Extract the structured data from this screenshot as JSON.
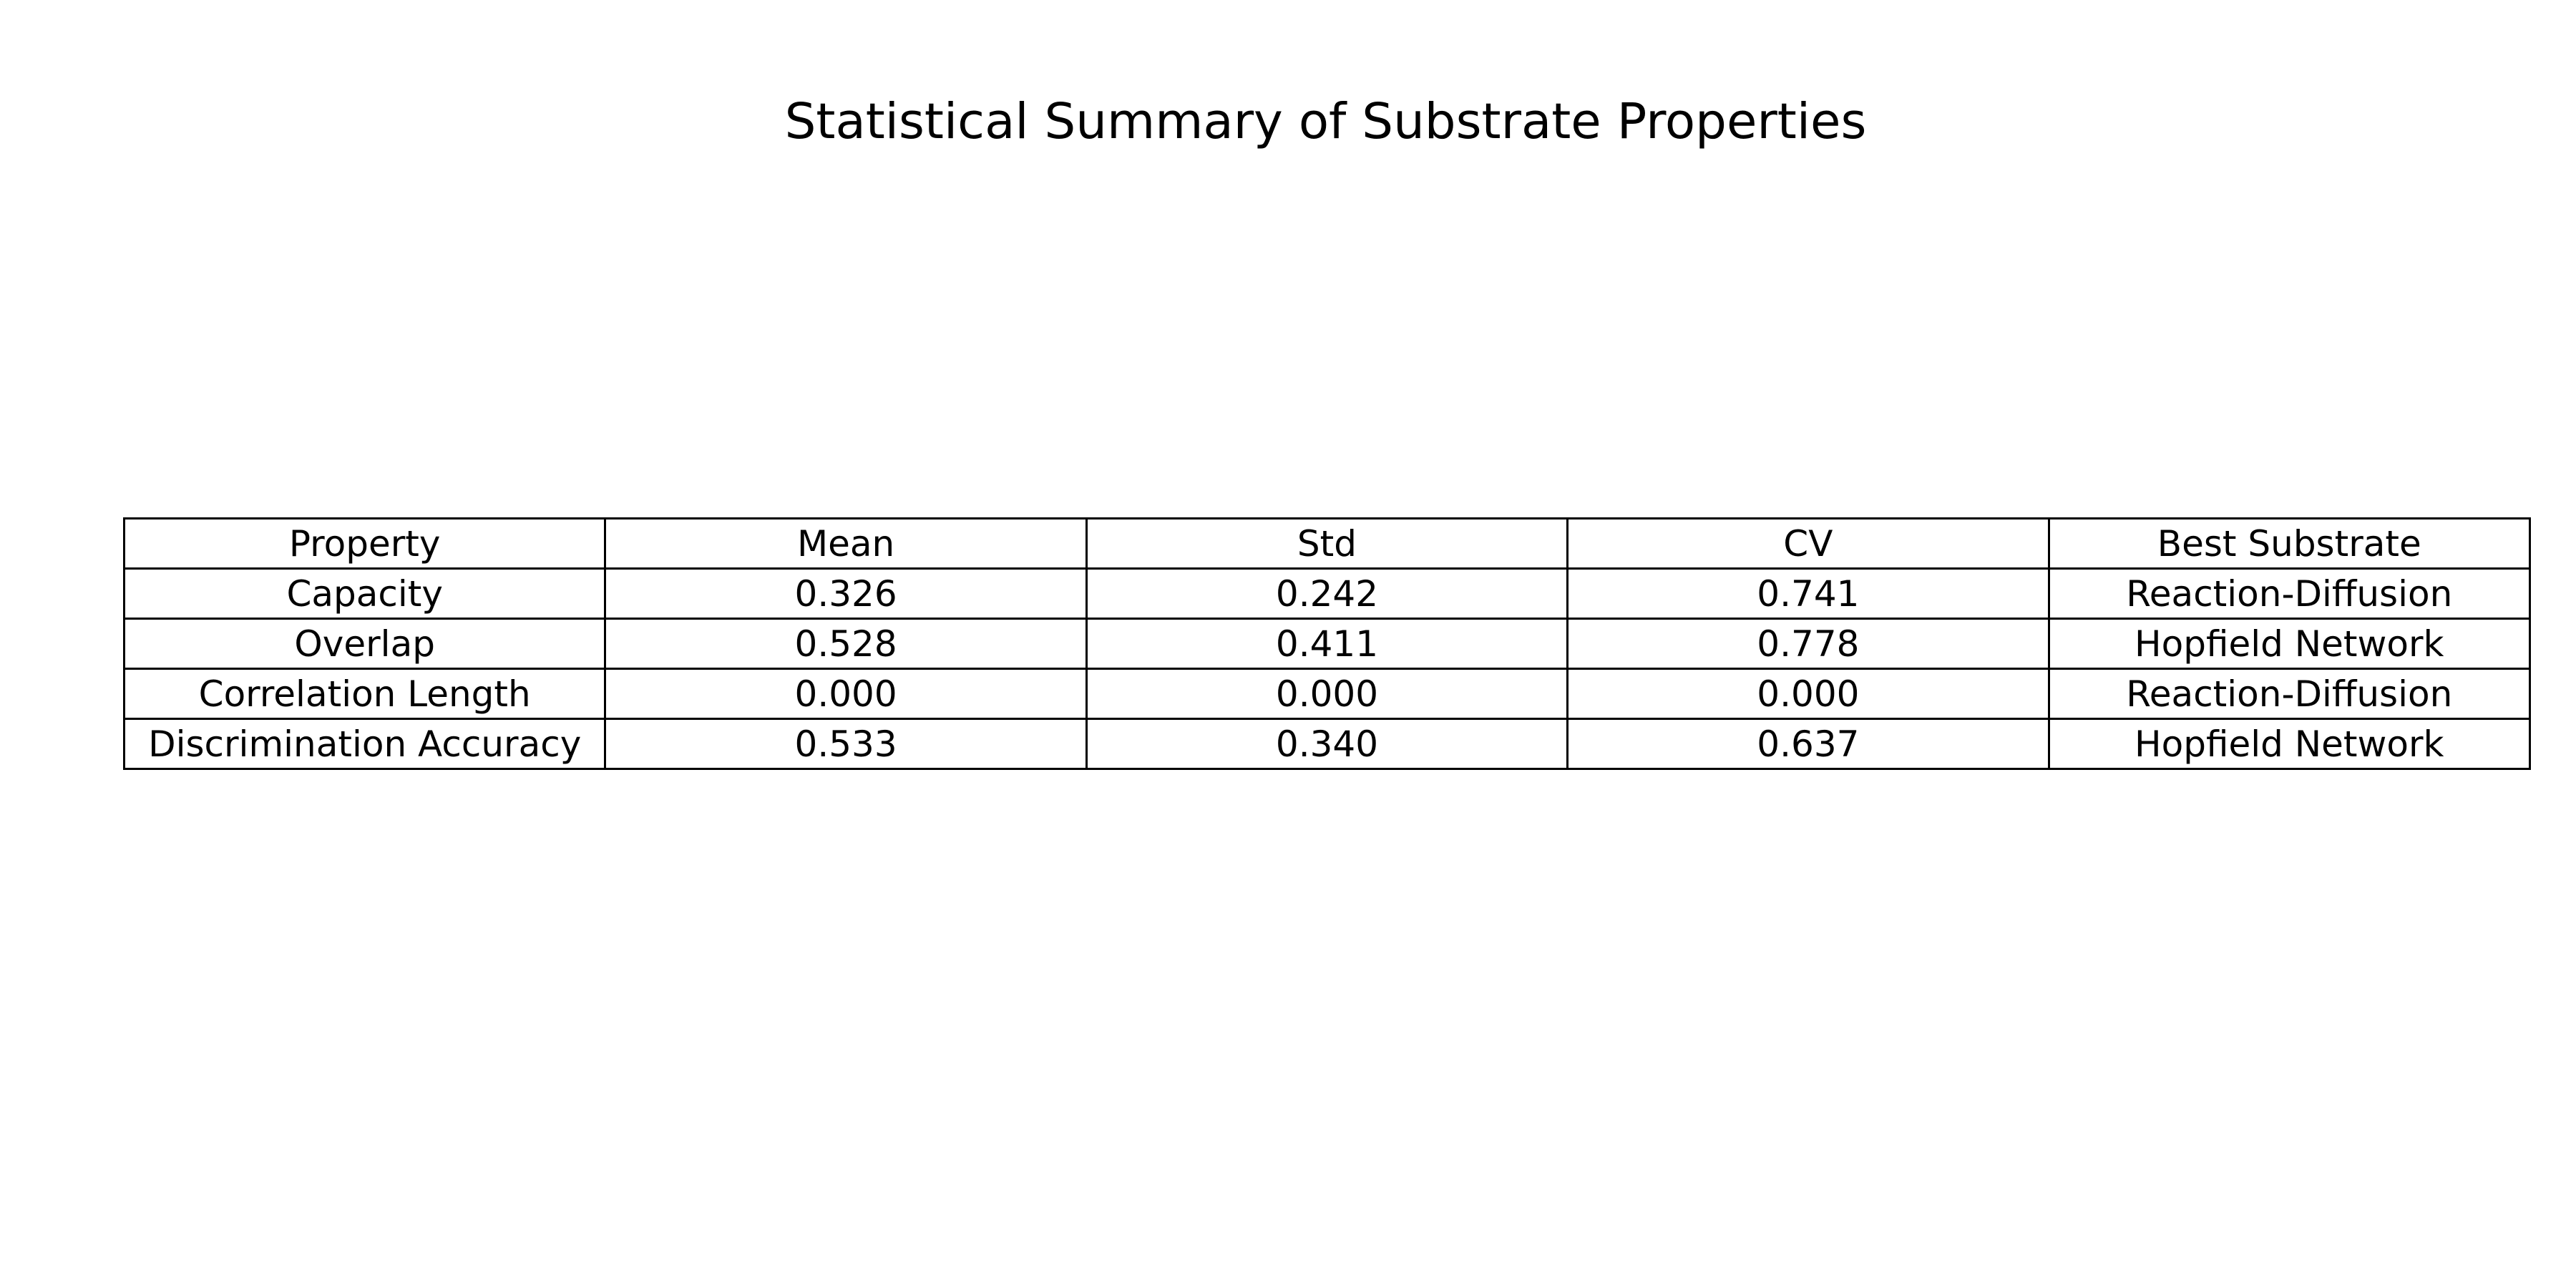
{
  "chart_data": {
    "type": "table",
    "title": "Statistical Summary of Substrate Properties",
    "columns": [
      "Property",
      "Mean",
      "Std",
      "CV",
      "Best Substrate"
    ],
    "rows": [
      [
        "Capacity",
        "0.326",
        "0.242",
        "0.741",
        "Reaction-Diffusion"
      ],
      [
        "Overlap",
        "0.528",
        "0.411",
        "0.778",
        "Hopfield Network"
      ],
      [
        "Correlation Length",
        "0.000",
        "0.000",
        "0.000",
        "Reaction-Diffusion"
      ],
      [
        "Discrimination Accuracy",
        "0.533",
        "0.340",
        "0.637",
        "Hopfield Network"
      ]
    ],
    "colors": {
      "background": "#ffffff",
      "text": "#000000",
      "grid": "#000000"
    }
  }
}
